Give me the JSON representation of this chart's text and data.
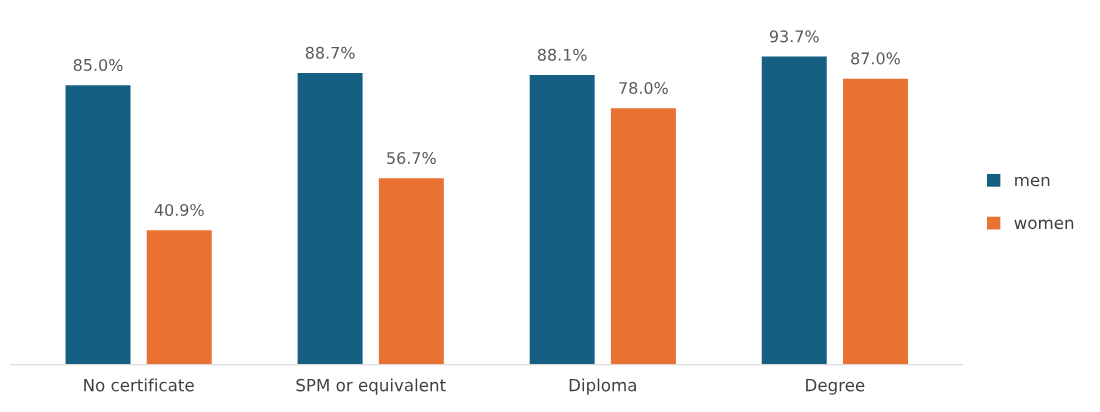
{
  "chart_data": {
    "type": "bar",
    "categories": [
      "No certificate",
      "SPM or equivalent",
      "Diploma",
      "Degree"
    ],
    "series": [
      {
        "name": "men",
        "color": "#156082",
        "values": [
          85.0,
          88.7,
          88.1,
          93.7
        ],
        "value_labels": [
          "85.0%",
          "88.7%",
          "88.1%",
          "93.7%"
        ]
      },
      {
        "name": "women",
        "color": "#e97132",
        "values": [
          40.9,
          56.7,
          78.0,
          87.0
        ],
        "value_labels": [
          "40.9%",
          "56.7%",
          "78.0%",
          "87.0%"
        ]
      }
    ],
    "tick_labels": "x",
    "grid": false,
    "legend": "right"
  }
}
